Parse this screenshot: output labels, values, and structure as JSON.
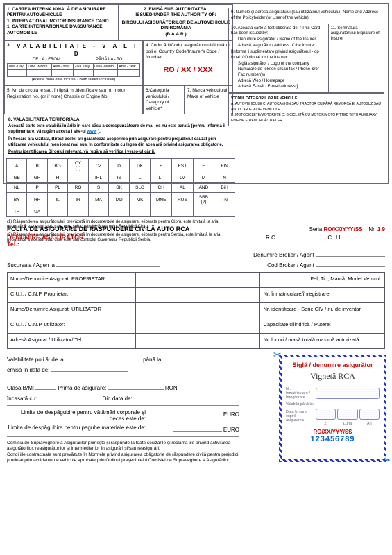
{
  "card": {
    "box1": "1. CARTEA INTERNA IONALĂ DE ASIGURARE PENTRU AUTOVEHICULE\n1. INTERNATIONAL MOTOR INSURANCE CARD\n1. CARTE INTERNATIONALE D'ASSURANCE AUTOMOBILE",
    "box2_title": "2. EMISĂ SUB AUTORITATEA:\nISSUED UNDER THE AUTHORITY OF:",
    "box2_body": "BIROULUI ASIGURĂTORILOR DE AUTOVEHICULE DIN ROMÂNIA\n(B.A.A.R.)",
    "box3_num": "3.",
    "valid": "VALABILITATE - V A L I D",
    "from": "DE LA - FROM",
    "to": "PÂNĂ LA - TO",
    "dates_note": "(Aceste două date inclusiv / Both Dates Inclusive)",
    "date_hdr1": "Ziua -Day",
    "date_hdr2": "Luna -Month",
    "date_hdr3": "Anul - Year",
    "box4": "4. Codul ării/Codul asigurătorului/Numărul poli ei Country Code/Insurer's Code / Number",
    "code": "RO / XX / XXX",
    "box5": "5. Nr. de circula ie sau, în lipsă, nr.identificare sau nr. motor Registration No. (or if none) Chassis or Engine No.",
    "box6": "6.Categoria vehiculului / Category of Vehicle*",
    "box7": "7. Marca vehiculului Make of Vehicle",
    "box9": "9. Numele și adresa asiguratului (sau utilizatorul vehiculului) Name and Address of the Policyholder (or User of the vehicle)",
    "box10": "10. Această carte a fost eliberată de: / This Card has been issued by:",
    "box10_b1": "Denumire asigurător / Name of the Insurer",
    "box10_b2": "Adresă asigurător / Address of the Insurer",
    "box10_opt": "[Informa ii suplimentare privind asigurătorul - op ional: / Optional for the Insurer:",
    "box10_b3": "Siglă asigurător / Logo of the company",
    "box10_b4": "Numărare de telefon și/sau fax / Phone &/or Fax number(s)",
    "box10_b5": "Adresă Web / Homepage",
    "box10_b6": "Adresă E-mail / E-mail address ]",
    "box11": "11. Semnătura asigurătorului Signature of Insurer",
    "terr_title": "8. VALABILITATEA TERITORIALĂ",
    "terr_p1a": "Această carte este valabilă în ările în care căsu a corespunzătoare de mai jos nu este barată (pentru informa ii suplimentare, vă rugăm accesa i site-ul ",
    "terr_link": "www",
    "terr_p1b": ").",
    "terr_p2": "În fiecare ară vizitată, Biroul acelei ări garantează acoperirea prin asigurare pentru prejudiciul cauzat prin utilizarea vehiculului men ionat mai sus, în conformitate cu legea din acea ară privind asigurarea obligatorie.",
    "terr_p3": "Pentru identificarea Biroului relevant, vă rugăm să verifica i verso-ul căr ii.",
    "countries": [
      [
        "A",
        "B",
        "BG",
        "CY (1)",
        "CZ",
        "D",
        "DK",
        "E",
        "EST",
        "F",
        "FIN"
      ],
      [
        "GB",
        "GR",
        "H",
        "I",
        "IRL",
        "IS",
        "L",
        "LT",
        "LV",
        "M",
        "N"
      ],
      [
        "NL",
        "P",
        "PL",
        "RO",
        "S",
        "SK",
        "SLO",
        "CH",
        "AL",
        "AND",
        "BiH"
      ],
      [
        "BY",
        "HR",
        "IL",
        "IR",
        "MA",
        "MD",
        "MK",
        "MNE",
        "RUS",
        "SRB (2)",
        "TN"
      ],
      [
        "TR",
        "UA",
        "",
        "",
        "",
        "",
        "",
        "",
        "",
        "",
        ""
      ]
    ],
    "foot1": "(1) Răspunderea asigurătorului, prevăzută în documentele de asigurare, eliberate pentru Cipru, este limitată la aria geografică a acestui stat, care este sub controlul Guvernului Republicii Cipru.",
    "foot2": "(2) Răspunderea asigurătorului, prevăzută în documentele de asigurare, eliberate pentru Serbia, este limitată la aria geografică a acestui stat, care este sub controlul Guvernului Republicii Serbia.",
    "codes_title": "*CODUL CATE GORIILOR DE VEHICULE",
    "codes": "A. AUTOVEHICULE    C. AUTOCAMION SAU TRACTOR CU/FĂRĂ REMORCĂ    E. AUTOBUZ SAU AUTOCAR    G. ALTE VEHICULE\nB. MOTOCICLETE/MOTORETE    D. BICICLETĂ CU MOTOR/MOTO FITTED WITH AUXILIARY ENGINE    F. REMORCĂ/TRAILER"
  },
  "rca": {
    "title": "POLI Ă DE ASIGURARE DE RĂSPUNDERE CIVILĂ AUTO RCA",
    "seria_lbl": "Seria",
    "seria": "RO/XX/YYY/SS",
    "nr_lbl": "Nr.",
    "nr": "1           9",
    "denum": "DENUMIRE ASIGURĂTOR",
    "rc": "R.C.",
    "cui": "C.U.I.",
    "tel": "Tel.:",
    "broker": "Denumire Broker / Agent",
    "sucursala": "Sucursala / Agen ia",
    "codbroker": "Cod Broker / Agent",
    "r1c1": "Nume/Denumire Asigurat: PROPRIETAR",
    "r1c2": "Fel, Tip, Marcă, Model Vehicul:",
    "r2c1": "C.U.I. / C.N.P. Proprietar:",
    "r2c2": "Nr. înmatriculare/înregistrare:",
    "r3c1": "Nume/Denumire Asigurat: UTILIZATOR",
    "r3c2": "Nr. identificare - Serie CIV / nr. de inventar",
    "r4c1": "C.U.I. / C.N.P. utilizator:",
    "r4c2": "Capacitate cilindrică / Putere:",
    "r5c1": "Adresă Asigurat / Utilizator/ Tel.",
    "r5c2": "Nr. locuri / masă totală maximă autorizată:",
    "valab": "Valabilitate poli ă: de la",
    "pana": "până la:",
    "emisa": "emisă în data de:",
    "clasa": "Clasa B/M:",
    "prima": "Prima de asigurare:",
    "ron": "RON",
    "incasata": "încasată cu:",
    "dindata": "Din data de:",
    "desp1": "Limita de despăgubire pentru vătămări corporale și deces este de:",
    "desp2": "Limita de despăgubire pentru pagube materiale este de:",
    "euro": "EURO",
    "disclaimer": "Comisia de Supraveghere a Asigurărilor primește și răspunde la toate sesizările și reclama iile privind activitatea asigurătorilor, reasigurătorilor și intermediarilor în asigurări și/sau reasigurări;\nCondi iile contractuale sunt prevăzute în Normele privind asigurarea obligatorie de răspundere civilă pentru prejudicii produse prin accidente de vehicule aprobate prin Ordinul președintelui Comisiei de Supraveghere a Asigurărilor."
  },
  "vig": {
    "sigla": "Siglă / denumire asigurător",
    "title": "Vignetă RCA",
    "lbl1": "Nr. înmatriculare / înregistrare",
    "lbl2": "Valabilă până la:",
    "lbl3": "Data în care expiră asigurarea",
    "zi": "Zi",
    "luna": "Lună",
    "an": "An",
    "serial": "RO/XX/YYY/SS",
    "number": "123456789"
  }
}
